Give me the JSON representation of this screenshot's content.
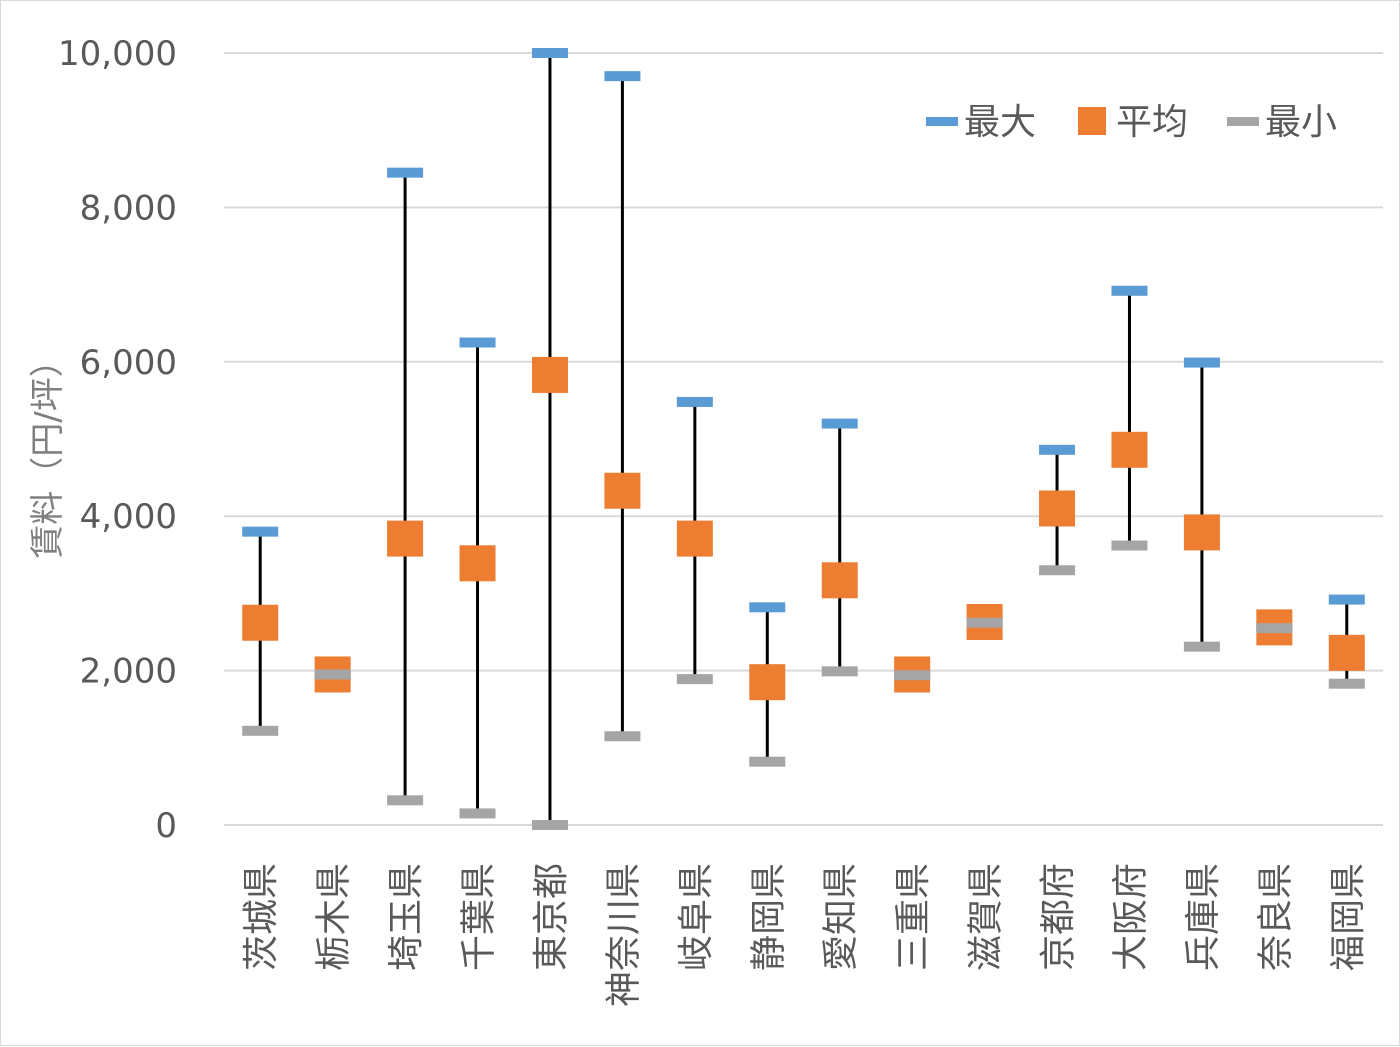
{
  "chart_data": {
    "type": "stock-hilo",
    "title": "",
    "xlabel": "",
    "ylabel": "賃料（円/坪）",
    "ylim": [
      0,
      10000
    ],
    "yticks": [
      0,
      2000,
      4000,
      6000,
      8000,
      10000
    ],
    "ytick_labels": [
      "0",
      "2,000",
      "4,000",
      "6,000",
      "8,000",
      "10,000"
    ],
    "grid": true,
    "legend_position": "top-right",
    "categories": [
      "茨城県",
      "栃木県",
      "埼玉県",
      "千葉県",
      "東京都",
      "神奈川県",
      "岐阜県",
      "静岡県",
      "愛知県",
      "三重県",
      "滋賀県",
      "京都府",
      "大阪府",
      "兵庫県",
      "奈良県",
      "福岡県"
    ],
    "series": [
      {
        "name": "最大",
        "color": "#5b9bd5",
        "marker": "dash",
        "values": [
          3800,
          1950,
          8450,
          6250,
          10000,
          9700,
          5480,
          2820,
          5200,
          1950,
          2630,
          4860,
          6920,
          5990,
          2560,
          2920
        ]
      },
      {
        "name": "平均",
        "color": "#ed7d31",
        "marker": "square",
        "values": [
          2620,
          1950,
          3710,
          3390,
          5830,
          4330,
          3710,
          1850,
          3170,
          1950,
          2630,
          4100,
          4860,
          3790,
          2560,
          2230
        ]
      },
      {
        "name": "最小",
        "color": "#a5a5a5",
        "marker": "dash",
        "values": [
          1220,
          1950,
          320,
          150,
          0,
          1150,
          1890,
          820,
          1990,
          1940,
          2620,
          3300,
          3620,
          2310,
          2550,
          1830
        ]
      }
    ],
    "hilo_line_color": "#000000"
  }
}
